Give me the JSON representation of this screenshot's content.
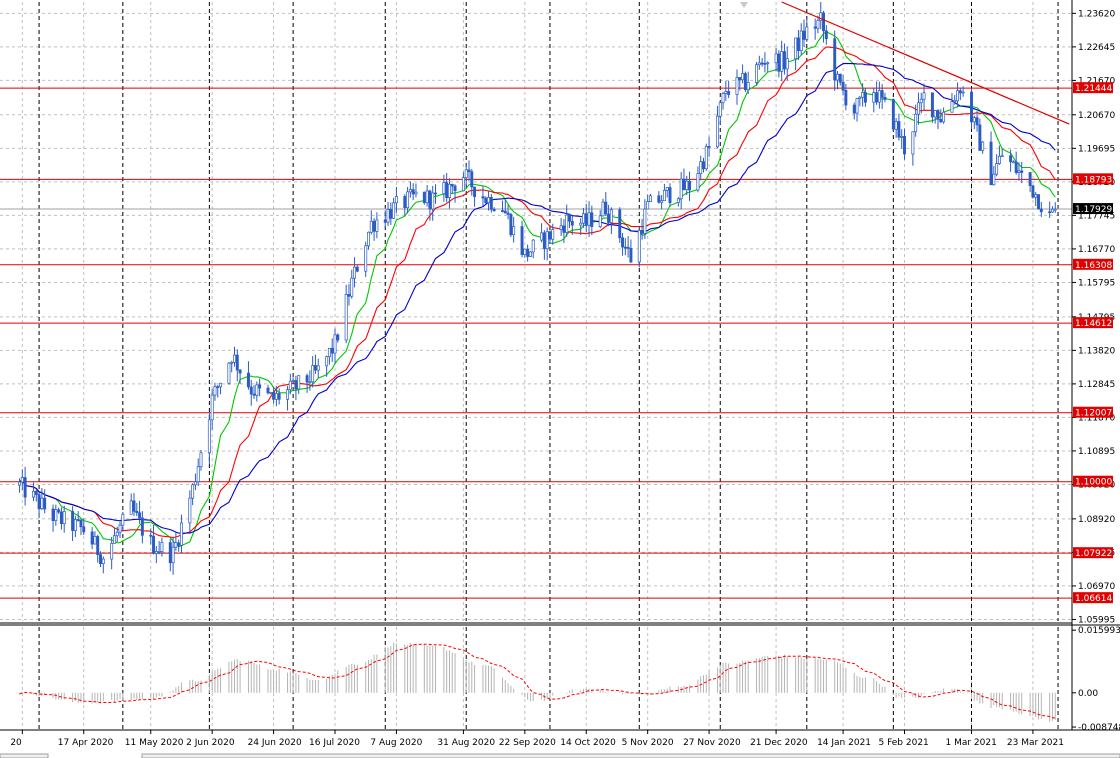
{
  "chart_data": {
    "type": "candlestick",
    "symbol_hidden": true,
    "price_axis": {
      "ticks": [
        "1.23620",
        "1.22645",
        "1.21670",
        "1.20670",
        "1.19695",
        "1.18720",
        "1.17745",
        "1.16770",
        "1.15795",
        "1.14795",
        "1.13820",
        "1.12845",
        "1.11870",
        "1.10895",
        "1.09920",
        "1.08920",
        "1.07945",
        "1.06970",
        "1.05995"
      ],
      "range": [
        1.0595,
        1.2395
      ]
    },
    "time_axis": {
      "labels": [
        "20",
        "17 Apr 2020",
        "11 May 2020",
        "2 Jun 2020",
        "24 Jun 2020",
        "16 Jul 2020",
        "7 Aug 2020",
        "31 Aug 2020",
        "22 Sep 2020",
        "14 Oct 2020",
        "5 Nov 2020",
        "27 Nov 2020",
        "21 Dec 2020",
        "14 Jan 2021",
        "5 Feb 2021",
        "1 Mar 2021",
        "23 Mar 2021"
      ]
    },
    "price_levels": [
      {
        "label": "1.21444",
        "value": 1.21444
      },
      {
        "label": "1.18793",
        "value": 1.18793
      },
      {
        "label": "1.16308",
        "value": 1.16308
      },
      {
        "label": "1.14612",
        "value": 1.14612
      },
      {
        "label": "1.12007",
        "value": 1.12007
      },
      {
        "label": "1.10000",
        "value": 1.1
      },
      {
        "label": "1.07922",
        "value": 1.07922
      },
      {
        "label": "1.06614",
        "value": 1.06614
      }
    ],
    "current_price": {
      "label": "1.17929",
      "value": 1.17929
    },
    "trendline": {
      "from": {
        "date": "2020-12-23",
        "price": 1.2395
      },
      "to": {
        "date": "2021-04-05",
        "price": 1.204
      }
    },
    "moving_averages": [
      {
        "color": "#00c800",
        "role": "fast"
      },
      {
        "color": "#ff0000",
        "role": "medium"
      },
      {
        "color": "#0000cd",
        "role": "slow"
      }
    ],
    "price_path": [
      {
        "date": "2020-03-25",
        "price": 1.099
      },
      {
        "date": "2020-04-06",
        "price": 1.09
      },
      {
        "date": "2020-04-17",
        "price": 1.086
      },
      {
        "date": "2020-04-24",
        "price": 1.078
      },
      {
        "date": "2020-05-04",
        "price": 1.092
      },
      {
        "date": "2020-05-11",
        "price": 1.082
      },
      {
        "date": "2020-05-19",
        "price": 1.079
      },
      {
        "date": "2020-05-26",
        "price": 1.098
      },
      {
        "date": "2020-06-02",
        "price": 1.124
      },
      {
        "date": "2020-06-09",
        "price": 1.137
      },
      {
        "date": "2020-06-16",
        "price": 1.127
      },
      {
        "date": "2020-06-24",
        "price": 1.124
      },
      {
        "date": "2020-07-03",
        "price": 1.128
      },
      {
        "date": "2020-07-10",
        "price": 1.132
      },
      {
        "date": "2020-07-16",
        "price": 1.14
      },
      {
        "date": "2020-07-22",
        "price": 1.158
      },
      {
        "date": "2020-07-29",
        "price": 1.175
      },
      {
        "date": "2020-08-07",
        "price": 1.18
      },
      {
        "date": "2020-08-14",
        "price": 1.183
      },
      {
        "date": "2020-08-21",
        "price": 1.182
      },
      {
        "date": "2020-08-31",
        "price": 1.189
      },
      {
        "date": "2020-09-07",
        "price": 1.183
      },
      {
        "date": "2020-09-14",
        "price": 1.18
      },
      {
        "date": "2020-09-22",
        "price": 1.166
      },
      {
        "date": "2020-09-30",
        "price": 1.171
      },
      {
        "date": "2020-10-07",
        "price": 1.176
      },
      {
        "date": "2020-10-14",
        "price": 1.175
      },
      {
        "date": "2020-10-21",
        "price": 1.18
      },
      {
        "date": "2020-10-30",
        "price": 1.165
      },
      {
        "date": "2020-11-05",
        "price": 1.18
      },
      {
        "date": "2020-11-13",
        "price": 1.184
      },
      {
        "date": "2020-11-20",
        "price": 1.186
      },
      {
        "date": "2020-11-27",
        "price": 1.197
      },
      {
        "date": "2020-12-03",
        "price": 1.214
      },
      {
        "date": "2020-12-10",
        "price": 1.216
      },
      {
        "date": "2020-12-17",
        "price": 1.223
      },
      {
        "date": "2020-12-24",
        "price": 1.222
      },
      {
        "date": "2021-01-01",
        "price": 1.231
      },
      {
        "date": "2021-01-06",
        "price": 1.234
      },
      {
        "date": "2021-01-12",
        "price": 1.216
      },
      {
        "date": "2021-01-18",
        "price": 1.208
      },
      {
        "date": "2021-01-25",
        "price": 1.214
      },
      {
        "date": "2021-02-01",
        "price": 1.205
      },
      {
        "date": "2021-02-05",
        "price": 1.197
      },
      {
        "date": "2021-02-12",
        "price": 1.212
      },
      {
        "date": "2021-02-18",
        "price": 1.206
      },
      {
        "date": "2021-02-25",
        "price": 1.215
      },
      {
        "date": "2021-03-01",
        "price": 1.206
      },
      {
        "date": "2021-03-08",
        "price": 1.189
      },
      {
        "date": "2021-03-12",
        "price": 1.195
      },
      {
        "date": "2021-03-18",
        "price": 1.19
      },
      {
        "date": "2021-03-23",
        "price": 1.185
      },
      {
        "date": "2021-03-29",
        "price": 1.177
      },
      {
        "date": "2021-03-31",
        "price": 1.1793
      }
    ],
    "oscillator": {
      "ticks": [
        "0.015993",
        "0.00",
        "-0.008748"
      ],
      "range": [
        -0.0095,
        0.0168
      ],
      "histogram_color": "#b4b4b4",
      "signal_color": "#ff0000",
      "path": [
        {
          "date": "2020-03-25",
          "value": 0.0
        },
        {
          "date": "2020-04-17",
          "value": -0.0025
        },
        {
          "date": "2020-05-11",
          "value": -0.0015
        },
        {
          "date": "2020-05-26",
          "value": 0.003
        },
        {
          "date": "2020-06-12",
          "value": 0.0085
        },
        {
          "date": "2020-06-24",
          "value": 0.006
        },
        {
          "date": "2020-07-10",
          "value": 0.0035
        },
        {
          "date": "2020-07-24",
          "value": 0.0075
        },
        {
          "date": "2020-08-07",
          "value": 0.0125
        },
        {
          "date": "2020-08-21",
          "value": 0.0118
        },
        {
          "date": "2020-09-07",
          "value": 0.007
        },
        {
          "date": "2020-09-25",
          "value": -0.002
        },
        {
          "date": "2020-10-14",
          "value": 0.001
        },
        {
          "date": "2020-11-02",
          "value": -0.0005
        },
        {
          "date": "2020-11-16",
          "value": 0.0015
        },
        {
          "date": "2020-12-04",
          "value": 0.0075
        },
        {
          "date": "2020-12-21",
          "value": 0.0095
        },
        {
          "date": "2021-01-08",
          "value": 0.0085
        },
        {
          "date": "2021-01-22",
          "value": 0.004
        },
        {
          "date": "2021-02-05",
          "value": -0.0015
        },
        {
          "date": "2021-02-22",
          "value": 0.001
        },
        {
          "date": "2021-03-08",
          "value": -0.0035
        },
        {
          "date": "2021-03-31",
          "value": -0.0072
        }
      ]
    },
    "grid": true,
    "period_separators": true
  }
}
